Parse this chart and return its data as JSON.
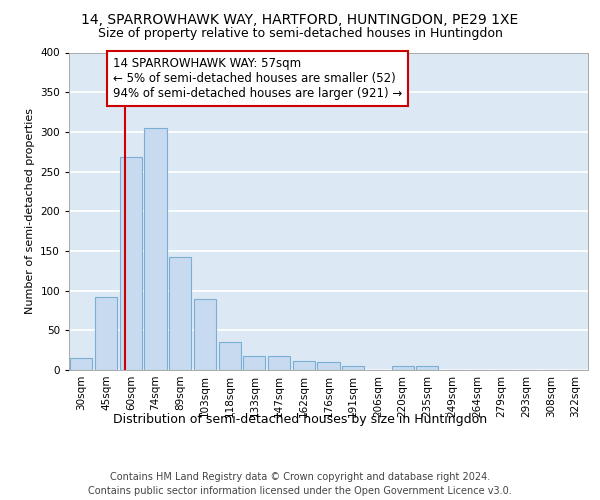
{
  "title1": "14, SPARROWHAWK WAY, HARTFORD, HUNTINGDON, PE29 1XE",
  "title2": "Size of property relative to semi-detached houses in Huntingdon",
  "xlabel": "Distribution of semi-detached houses by size in Huntingdon",
  "ylabel": "Number of semi-detached properties",
  "footer1": "Contains HM Land Registry data © Crown copyright and database right 2024.",
  "footer2": "Contains public sector information licensed under the Open Government Licence v3.0.",
  "bar_values": [
    15,
    92,
    268,
    305,
    142,
    90,
    35,
    18,
    18,
    11,
    10,
    5,
    0,
    5,
    5,
    0,
    0,
    0,
    0,
    0,
    0
  ],
  "bar_labels": [
    "30sqm",
    "45sqm",
    "60sqm",
    "74sqm",
    "89sqm",
    "103sqm",
    "118sqm",
    "133sqm",
    "147sqm",
    "162sqm",
    "176sqm",
    "191sqm",
    "206sqm",
    "220sqm",
    "235sqm",
    "249sqm",
    "264sqm",
    "279sqm",
    "293sqm",
    "308sqm",
    "322sqm"
  ],
  "bar_color": "#c8daf0",
  "bar_edge_color": "#7aafd4",
  "vline_x": 1.75,
  "vline_color": "#cc0000",
  "annotation_title": "14 SPARROWHAWK WAY: 57sqm",
  "annotation_line1": "← 5% of semi-detached houses are smaller (52)",
  "annotation_line2": "94% of semi-detached houses are larger (921) →",
  "annotation_box_color": "#ffffff",
  "annotation_box_edge": "#cc0000",
  "ylim": [
    0,
    400
  ],
  "yticks": [
    0,
    50,
    100,
    150,
    200,
    250,
    300,
    350,
    400
  ],
  "fig_bg_color": "#ffffff",
  "plot_bg_color": "#dde8f5",
  "grid_color": "#ffffff",
  "title_fontsize": 10,
  "subtitle_fontsize": 9,
  "xlabel_fontsize": 9,
  "ylabel_fontsize": 8,
  "tick_fontsize": 7.5,
  "footer_fontsize": 7,
  "ann_fontsize": 8.5
}
